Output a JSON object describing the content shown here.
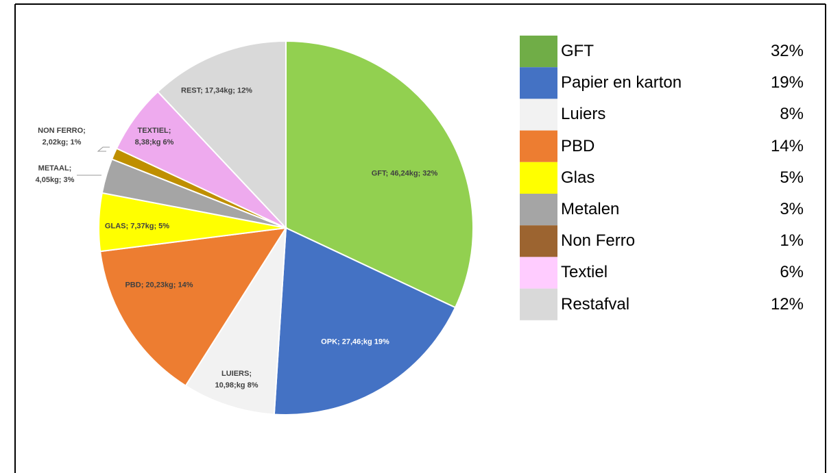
{
  "chart_data": {
    "type": "pie",
    "values": [
      32,
      19,
      8,
      14,
      5,
      3,
      1,
      6,
      12
    ],
    "value_labels": [
      "GFT; 46,24kg; 32%",
      "OPK; 27,46;kg 19%",
      "LUIERS; 10,98;kg 8%",
      "PBD; 20,23kg; 14%",
      "GLAS; 7,37kg; 5%",
      "METAAL; 4,05kg; 3%",
      "NON FERRO; 2,02kg; 1%",
      "TEXTIEL; 8,38;kg 6%",
      "REST; 17,34kg; 12%"
    ],
    "colors": [
      "#92d050",
      "#4472c4",
      "#f2f2f2",
      "#ed7d31",
      "#ffff00",
      "#a5a5a5",
      "#bf8f00",
      "#eeaaee",
      "#d9d9d9"
    ]
  },
  "legend_table": {
    "rows": [
      {
        "name": "GFT",
        "color": "#70ad47",
        "value": "32%"
      },
      {
        "name": "Papier en karton",
        "color": "#4472c4",
        "value": "19%"
      },
      {
        "name": "Luiers",
        "color": "#f2f2f2",
        "value": "8%"
      },
      {
        "name": "PBD",
        "color": "#ed7d31",
        "value": "14%"
      },
      {
        "name": "Glas",
        "color": "#ffff00",
        "value": "5%"
      },
      {
        "name": "Metalen",
        "color": "#a5a5a5",
        "value": "3%"
      },
      {
        "name": "Non Ferro",
        "color": "#9c6430",
        "value": "1%"
      },
      {
        "name": "Textiel",
        "color": "#ffccff",
        "value": "6%"
      },
      {
        "name": "Restafval",
        "color": "#d9d9d9",
        "value": "12%"
      }
    ]
  }
}
